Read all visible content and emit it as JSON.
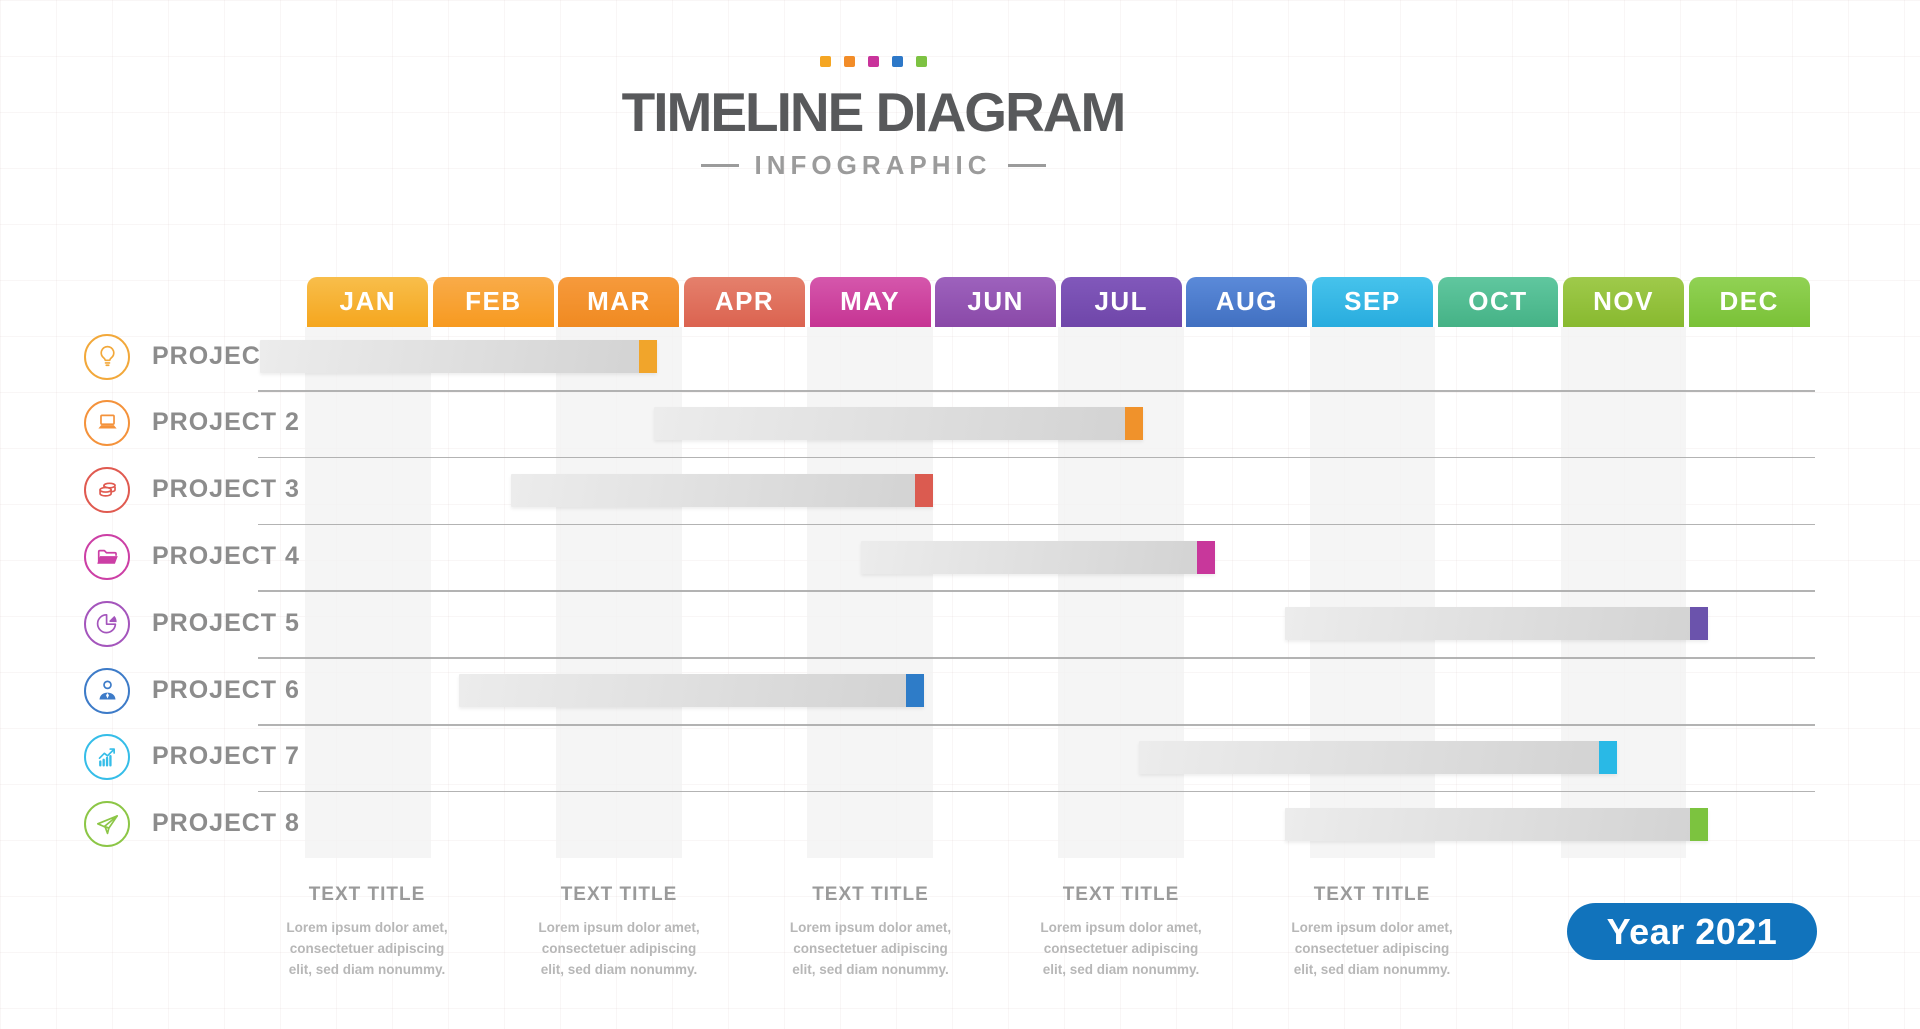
{
  "header": {
    "title": "TIMELINE DIAGRAM",
    "subtitle": "INFOGRAPHIC",
    "accent_squares": [
      "#F5A623",
      "#F28C28",
      "#C9339B",
      "#2D78C8",
      "#7DC242"
    ]
  },
  "year_badge": {
    "label": "Year 2021",
    "color": "#1173BC"
  },
  "chart_data": {
    "type": "gantt",
    "title": "TIMELINE DIAGRAM",
    "subtitle": "INFOGRAPHIC",
    "x_axis": {
      "unit": "months",
      "range": [
        "JAN",
        "DEC"
      ],
      "grid": "alternating light stripes under JAN, MAR, MAY, JUL, SEP, NOV"
    },
    "legend_position": "none",
    "months": [
      {
        "label": "JAN",
        "color_top": "#F8BE4B",
        "color_bottom": "#F5A61E",
        "striped": true
      },
      {
        "label": "FEB",
        "color_top": "#F9AB49",
        "color_bottom": "#F79A20",
        "striped": false
      },
      {
        "label": "MAR",
        "color_top": "#F69A3C",
        "color_bottom": "#F08A21",
        "striped": true
      },
      {
        "label": "APR",
        "color_top": "#E5806C",
        "color_bottom": "#DB6350",
        "striped": false
      },
      {
        "label": "MAY",
        "color_top": "#D557AC",
        "color_bottom": "#C63493",
        "striped": true
      },
      {
        "label": "JUN",
        "color_top": "#9D62BD",
        "color_bottom": "#8A49A8",
        "striped": false
      },
      {
        "label": "JUL",
        "color_top": "#8158BB",
        "color_bottom": "#6F46A9",
        "striped": true
      },
      {
        "label": "AUG",
        "color_top": "#5B8AD9",
        "color_bottom": "#4170C1",
        "striped": false
      },
      {
        "label": "SEP",
        "color_top": "#46C3EC",
        "color_bottom": "#28ACDE",
        "striped": true
      },
      {
        "label": "OCT",
        "color_top": "#60C79F",
        "color_bottom": "#45B286",
        "striped": false
      },
      {
        "label": "NOV",
        "color_top": "#9FCA4B",
        "color_bottom": "#88B92F",
        "striped": true
      },
      {
        "label": "DEC",
        "color_top": "#91D254",
        "color_bottom": "#7AC137",
        "striped": false
      }
    ],
    "projects": [
      {
        "name": "PROJECT 1",
        "icon": "lightbulb-icon",
        "icon_color": "#F2A83A",
        "bar_color": "#F1A52B",
        "start_month": -0.36,
        "end_month": 2.8
      },
      {
        "name": "PROJECT 2",
        "icon": "laptop-icon",
        "icon_color": "#F4923B",
        "bar_color": "#F0922B",
        "start_month": 2.78,
        "end_month": 6.67
      },
      {
        "name": "PROJECT 3",
        "icon": "coins-icon",
        "icon_color": "#E05A50",
        "bar_color": "#DB5B50",
        "start_month": 1.64,
        "end_month": 5.0
      },
      {
        "name": "PROJECT 4",
        "icon": "folder-icon",
        "icon_color": "#CC3FA5",
        "bar_color": "#C8379B",
        "start_month": 4.43,
        "end_month": 7.25
      },
      {
        "name": "PROJECT 5",
        "icon": "pie-chart-icon",
        "icon_color": "#A455BC",
        "bar_color": "#6B53AC",
        "start_month": 7.8,
        "end_month": 11.17
      },
      {
        "name": "PROJECT 6",
        "icon": "businessman-icon",
        "icon_color": "#3D7BC8",
        "bar_color": "#2E7CC8",
        "start_month": 1.23,
        "end_month": 4.93
      },
      {
        "name": "PROJECT 7",
        "icon": "growth-chart-icon",
        "icon_color": "#35BDE8",
        "bar_color": "#29B9E6",
        "start_month": 6.64,
        "end_month": 10.45
      },
      {
        "name": "PROJECT 8",
        "icon": "paper-plane-icon",
        "icon_color": "#8CC646",
        "bar_color": "#7CC33F",
        "start_month": 7.8,
        "end_month": 11.17
      }
    ],
    "bar_track_gradient": [
      "#ECECEC",
      "#D2D2D2"
    ]
  },
  "footnotes": [
    {
      "title": "TEXT TITLE",
      "lines": [
        "Lorem ipsum dolor amet,",
        "consectetuer adipiscing",
        "elit, sed diam nonummy."
      ]
    },
    {
      "title": "TEXT TITLE",
      "lines": [
        "Lorem ipsum dolor amet,",
        "consectetuer adipiscing",
        "elit, sed diam nonummy."
      ]
    },
    {
      "title": "TEXT TITLE",
      "lines": [
        "Lorem ipsum dolor amet,",
        "consectetuer adipiscing",
        "elit, sed diam nonummy."
      ]
    },
    {
      "title": "TEXT TITLE",
      "lines": [
        "Lorem ipsum dolor amet,",
        "consectetuer adipiscing",
        "elit, sed diam nonummy."
      ]
    },
    {
      "title": "TEXT TITLE",
      "lines": [
        "Lorem ipsum dolor amet,",
        "consectetuer adipiscing",
        "elit, sed diam nonummy."
      ]
    }
  ]
}
